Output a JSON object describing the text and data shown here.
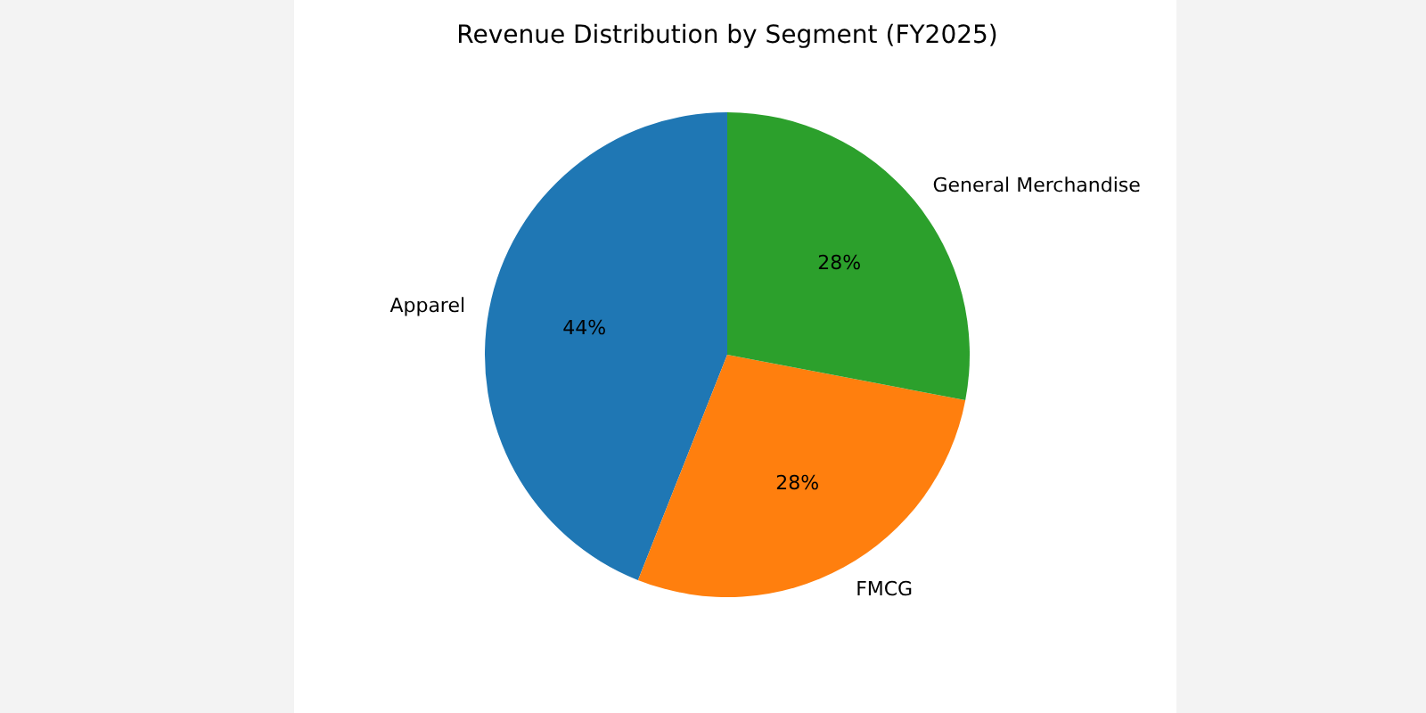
{
  "chart_data": {
    "type": "pie",
    "title": "Revenue Distribution by Segment (FY2025)",
    "categories": [
      "Apparel",
      "FMCG",
      "General Merchandise"
    ],
    "values": [
      44,
      28,
      28
    ],
    "colors": [
      "#1f77b4",
      "#ff7f0e",
      "#2ca02c"
    ],
    "value_labels": [
      "44%",
      "28%",
      "28%"
    ]
  }
}
